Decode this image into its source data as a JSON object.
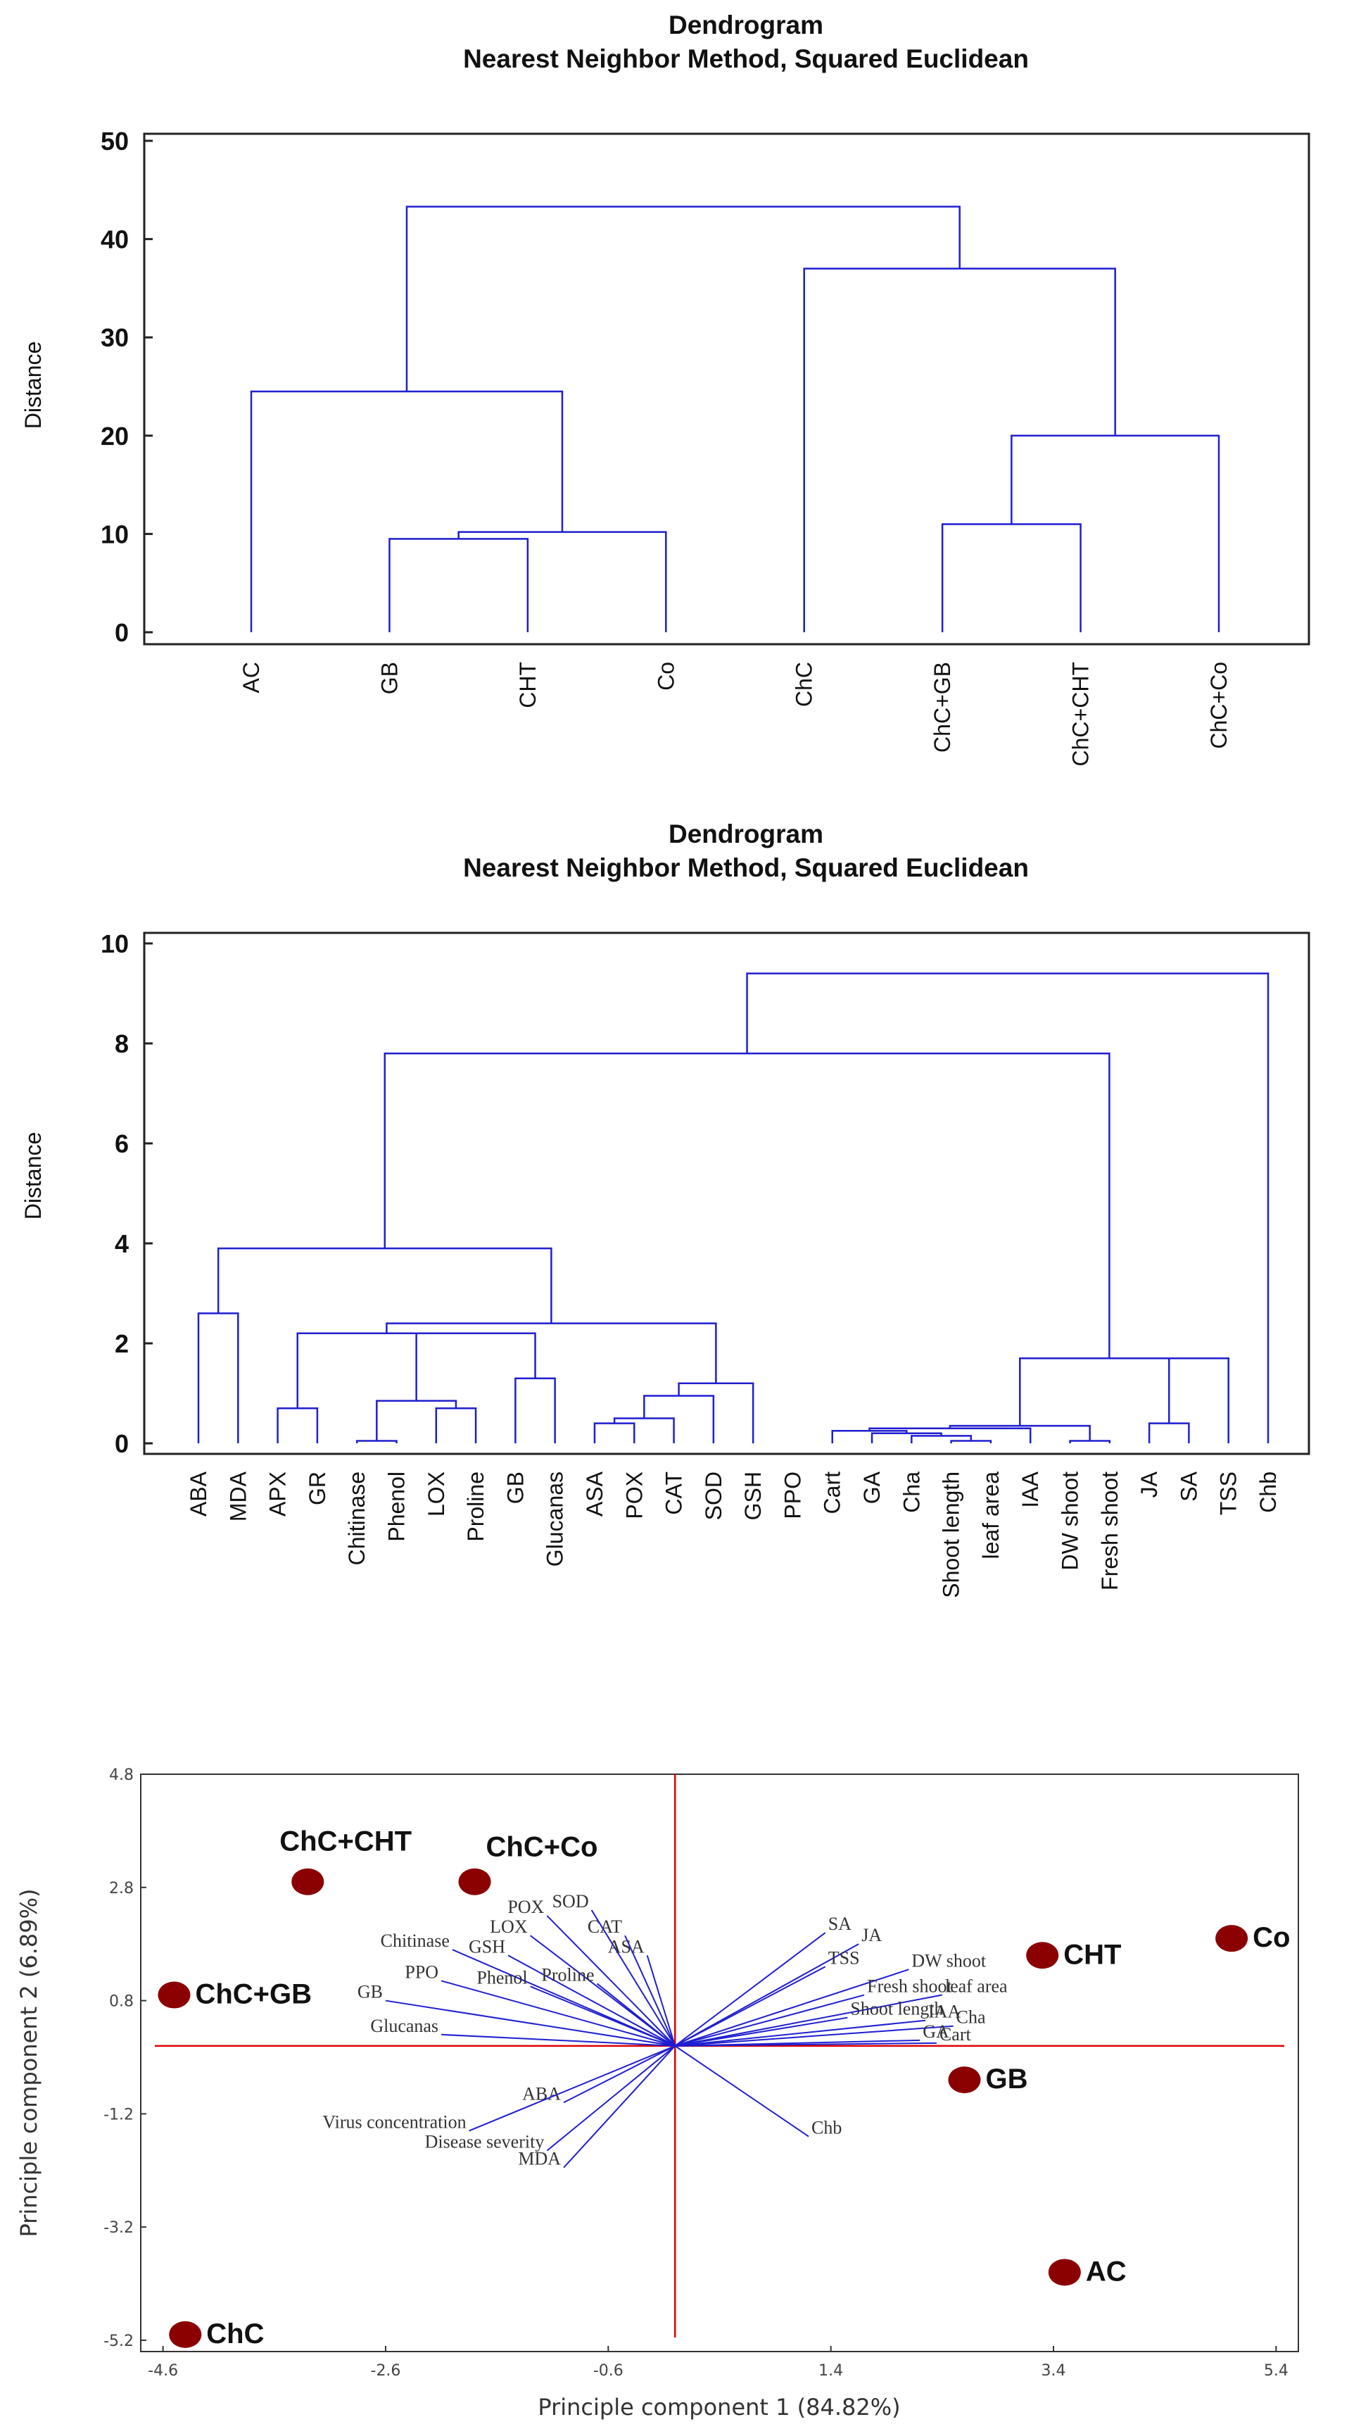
{
  "chart_data": [
    {
      "type": "dendrogram",
      "title": "Dendrogram",
      "subtitle": "Nearest Neighbor Method, Squared Euclidean",
      "ylabel": "Distance",
      "ylim": [
        0,
        50
      ],
      "yticks": [
        "0",
        "10",
        "20",
        "30",
        "40",
        "50"
      ],
      "leaves": [
        "AC",
        "GB",
        "CHT",
        "Co",
        "ChC",
        "ChC+GB",
        "ChC+CHT",
        "ChC+Co"
      ],
      "merges": [
        {
          "a": 1,
          "b": 2,
          "height": 9.5
        },
        {
          "a": 8,
          "b": 3,
          "height": 10.2
        },
        {
          "a": 0,
          "b": 9,
          "height": 24.5
        },
        {
          "a": 5,
          "b": 6,
          "height": 11
        },
        {
          "a": 11,
          "b": 7,
          "height": 20
        },
        {
          "a": 4,
          "b": 12,
          "height": 37
        },
        {
          "a": 10,
          "b": 13,
          "height": 43.3
        }
      ]
    },
    {
      "type": "dendrogram",
      "title": "Dendrogram",
      "subtitle": "Nearest Neighbor Method, Squared Euclidean",
      "ylabel": "Distance",
      "ylim": [
        0,
        10
      ],
      "yticks": [
        "0",
        "2",
        "4",
        "6",
        "8",
        "10"
      ],
      "leaves": [
        "ABA",
        "MDA",
        "APX",
        "GR",
        "Chitinase",
        "Phenol",
        "LOX",
        "Proline",
        "GB",
        "Glucanas",
        "ASA",
        "POX",
        "CAT",
        "SOD",
        "GSH",
        "PPO",
        "Cart",
        "GA",
        "Cha",
        "Shoot length",
        "leaf area",
        "IAA",
        "DW shoot",
        "Fresh shoot",
        "JA",
        "SA",
        "TSS",
        "Chb"
      ],
      "merges": [
        {
          "a": 0,
          "b": 1,
          "height": 2.6
        },
        {
          "a": 2,
          "b": 3,
          "height": 0.7
        },
        {
          "a": 4,
          "b": 5,
          "height": 0.05
        },
        {
          "a": 6,
          "b": 7,
          "height": 0.7
        },
        {
          "a": 30,
          "b": 31,
          "height": 0.85
        },
        {
          "a": 8,
          "b": 9,
          "height": 1.3
        },
        {
          "a": 32,
          "b": 33,
          "height": 2.2
        },
        {
          "a": 29,
          "b": 34,
          "height": 2.2
        },
        {
          "a": 10,
          "b": 11,
          "height": 0.4
        },
        {
          "a": 36,
          "b": 12,
          "height": 0.5
        },
        {
          "a": 37,
          "b": 13,
          "height": 0.95
        },
        {
          "a": 38,
          "b": 14,
          "height": 1.2
        },
        {
          "a": 35,
          "b": 39,
          "height": 2.4
        },
        {
          "a": 28,
          "b": 40,
          "height": 3.9
        },
        {
          "a": 19,
          "b": 20,
          "height": 0.05
        },
        {
          "a": 18,
          "b": 42,
          "height": 0.15
        },
        {
          "a": 17,
          "b": 43,
          "height": 0.2
        },
        {
          "a": 16,
          "b": 44,
          "height": 0.25
        },
        {
          "a": 45,
          "b": 21,
          "height": 0.3
        },
        {
          "a": 22,
          "b": 23,
          "height": 0.05
        },
        {
          "a": 46,
          "b": 47,
          "height": 0.35
        },
        {
          "a": 24,
          "b": 25,
          "height": 0.4
        },
        {
          "a": 49,
          "b": 26,
          "height": 1.7
        },
        {
          "a": 48,
          "b": 50,
          "height": 1.7
        },
        {
          "a": 41,
          "b": 51,
          "height": 7.8
        },
        {
          "a": 52,
          "b": 27,
          "height": 9.4
        }
      ]
    },
    {
      "type": "scatter",
      "subtype": "biplot",
      "xlabel": "Principle component 1 (84.82%)",
      "ylabel": "Principle component 2 (6.89%)",
      "xlim": [
        -4.8,
        5.6
      ],
      "ylim": [
        -5.4,
        4.8
      ],
      "xticks": [
        "-4.6",
        "-2.6",
        "-0.6",
        "1.4",
        "3.4",
        "5.4"
      ],
      "yticks": [
        "-5.2",
        "-3.2",
        "-1.2",
        "0.8",
        "2.8",
        "4.8"
      ],
      "point_color": "#8b0000",
      "vector_color": "#1f1fd0",
      "axis_line_color": "#e00000",
      "points": [
        {
          "label": "ChC+CHT",
          "x": -3.3,
          "y": 2.9
        },
        {
          "label": "ChC+Co",
          "x": -1.8,
          "y": 2.9
        },
        {
          "label": "ChC+GB",
          "x": -4.5,
          "y": 0.9
        },
        {
          "label": "ChC",
          "x": -4.4,
          "y": -5.1
        },
        {
          "label": "CHT",
          "x": 3.3,
          "y": 1.6
        },
        {
          "label": "Co",
          "x": 5.0,
          "y": 1.9
        },
        {
          "label": "GB",
          "x": 2.6,
          "y": -0.6
        },
        {
          "label": "AC",
          "x": 3.5,
          "y": -4.0
        }
      ],
      "vectors": [
        {
          "label": "POX",
          "x": -1.15,
          "y": 2.3
        },
        {
          "label": "SOD",
          "x": -0.75,
          "y": 2.4
        },
        {
          "label": "LOX",
          "x": -1.3,
          "y": 1.95
        },
        {
          "label": "CAT",
          "x": -0.45,
          "y": 1.95
        },
        {
          "label": "GSH",
          "x": -1.5,
          "y": 1.6
        },
        {
          "label": "ASA",
          "x": -0.25,
          "y": 1.6
        },
        {
          "label": "Chitinase",
          "x": -2.0,
          "y": 1.7
        },
        {
          "label": "PPO",
          "x": -2.1,
          "y": 1.15
        },
        {
          "label": "Phenol",
          "x": -1.3,
          "y": 1.05
        },
        {
          "label": "Proline",
          "x": -0.7,
          "y": 1.1
        },
        {
          "label": "GB",
          "x": -2.6,
          "y": 0.8
        },
        {
          "label": "Glucanas",
          "x": -2.1,
          "y": 0.2
        },
        {
          "label": "ABA",
          "x": -1.0,
          "y": -1.0
        },
        {
          "label": "Virus concentration",
          "x": -1.85,
          "y": -1.5
        },
        {
          "label": "Disease severity",
          "x": -1.15,
          "y": -1.85
        },
        {
          "label": "MDA",
          "x": -1.0,
          "y": -2.15
        },
        {
          "label": "SA",
          "x": 1.35,
          "y": 2.0
        },
        {
          "label": "JA",
          "x": 1.65,
          "y": 1.8
        },
        {
          "label": "TSS",
          "x": 1.35,
          "y": 1.4
        },
        {
          "label": "DW shoot",
          "x": 2.1,
          "y": 1.35
        },
        {
          "label": "Fresh shoot",
          "x": 1.7,
          "y": 0.9
        },
        {
          "label": "leaf area",
          "x": 2.4,
          "y": 0.9
        },
        {
          "label": "Shoot length",
          "x": 1.55,
          "y": 0.5
        },
        {
          "label": "IAA",
          "x": 2.25,
          "y": 0.45
        },
        {
          "label": "Cha",
          "x": 2.5,
          "y": 0.35
        },
        {
          "label": "GA",
          "x": 2.2,
          "y": 0.1
        },
        {
          "label": "Cart",
          "x": 2.35,
          "y": 0.05
        },
        {
          "label": "Chb",
          "x": 1.2,
          "y": -1.6
        }
      ]
    }
  ]
}
